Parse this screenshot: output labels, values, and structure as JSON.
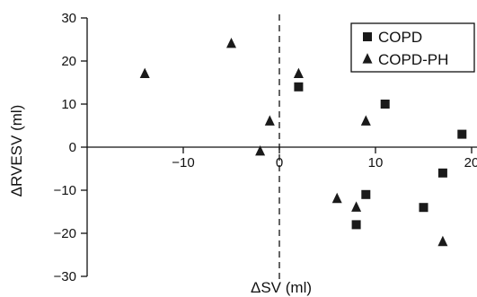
{
  "chart_data": {
    "type": "scatter",
    "title": "",
    "xlabel": "ΔSV (ml)",
    "ylabel": "ΔRVESV (ml)",
    "xlim": [
      -20,
      20
    ],
    "ylim": [
      -30,
      30
    ],
    "x_ticks": [
      -10,
      0,
      10,
      20
    ],
    "y_ticks": [
      -30,
      -20,
      -10,
      0,
      10,
      20,
      30
    ],
    "x_tick_labels": [
      "−10",
      "0",
      "10",
      "20"
    ],
    "y_tick_labels": [
      "−30",
      "−20",
      "−10",
      "0",
      "10",
      "20",
      "30"
    ],
    "grid": false,
    "legend_position": "top-right",
    "reference_lines": [
      {
        "axis": "x",
        "value": 0,
        "style": "dashed"
      }
    ],
    "series": [
      {
        "name": "COPD",
        "marker": "square",
        "color": "#1a1a1a",
        "points": [
          {
            "x": 2,
            "y": 14
          },
          {
            "x": 11,
            "y": 10
          },
          {
            "x": 19,
            "y": 3
          },
          {
            "x": 17,
            "y": -6
          },
          {
            "x": 9,
            "y": -11
          },
          {
            "x": 15,
            "y": -14
          },
          {
            "x": 8,
            "y": -18
          }
        ]
      },
      {
        "name": "COPD-PH",
        "marker": "triangle",
        "color": "#1a1a1a",
        "points": [
          {
            "x": -14,
            "y": 17
          },
          {
            "x": -5,
            "y": 24
          },
          {
            "x": 2,
            "y": 17
          },
          {
            "x": -1,
            "y": 6
          },
          {
            "x": -2,
            "y": -1
          },
          {
            "x": 9,
            "y": 6
          },
          {
            "x": 6,
            "y": -12
          },
          {
            "x": 8,
            "y": -14
          },
          {
            "x": 17,
            "y": -22
          }
        ]
      }
    ]
  }
}
